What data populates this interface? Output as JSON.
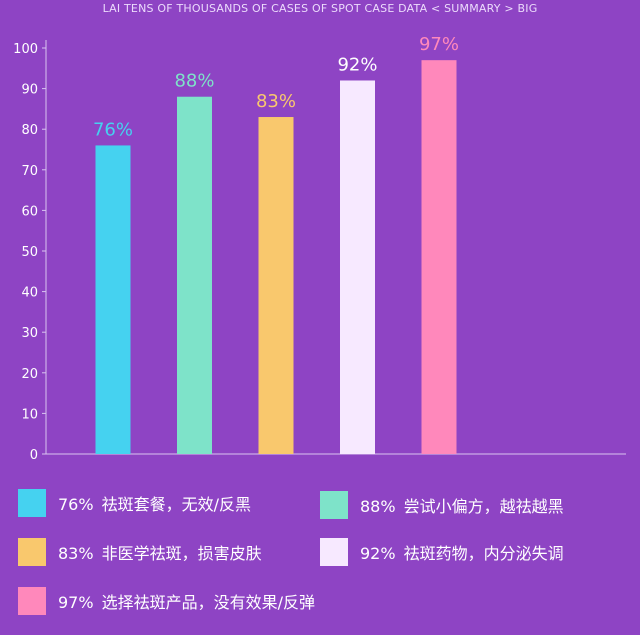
{
  "chart_data": {
    "type": "bar",
    "title": "LAI TENS OF THOUSANDS OF CASES OF SPOT CASE DATA < SUMMARY > BIG",
    "xlabel": "",
    "ylabel": "",
    "ylim": [
      0,
      100
    ],
    "yticks": [
      0,
      10,
      20,
      30,
      40,
      50,
      60,
      70,
      80,
      90,
      100
    ],
    "values": [
      76,
      88,
      83,
      92,
      97
    ],
    "data_labels": [
      "76%",
      "88%",
      "83%",
      "92%",
      "97%"
    ],
    "colors": [
      "#45d2f0",
      "#7ee3c9",
      "#f9c86d",
      "#f7e9ff",
      "#ff88bb"
    ],
    "label_colors": [
      "#45d2f0",
      "#7ee3c9",
      "#f9c86d",
      "#ffffff",
      "#ff88bb"
    ],
    "legend": [
      {
        "pct": "76%",
        "text": "祛斑套餐，无效/反黑"
      },
      {
        "pct": "88%",
        "text": "尝试小偏方，越祛越黑"
      },
      {
        "pct": "83%",
        "text": "非医学祛斑，损害皮肤"
      },
      {
        "pct": "92%",
        "text": "祛斑药物，内分泌失调"
      },
      {
        "pct": "97%",
        "text": "选择祛斑产品，没有效果/反弹"
      }
    ]
  }
}
